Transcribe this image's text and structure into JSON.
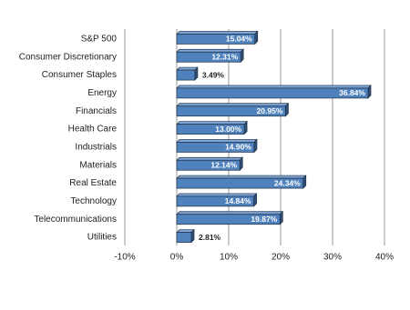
{
  "chart_data": {
    "type": "bar",
    "orientation": "horizontal",
    "categories": [
      "S&P 500",
      "Consumer Discretionary",
      "Consumer Staples",
      "Energy",
      "Financials",
      "Health Care",
      "Industrials",
      "Materials",
      "Real Estate",
      "Technology",
      "Telecommunications",
      "Utilities"
    ],
    "values": [
      15.04,
      12.31,
      3.49,
      36.84,
      20.95,
      13.0,
      14.9,
      12.14,
      24.34,
      14.84,
      19.87,
      2.81
    ],
    "value_labels": [
      "15.04%",
      "12.31%",
      "3.49%",
      "36.84%",
      "20.95%",
      "13.00%",
      "14.90%",
      "12.14%",
      "24.34%",
      "14.84%",
      "19.87%",
      "2.81%"
    ],
    "color": "#4f81bd",
    "xlim": [
      -10,
      40
    ],
    "xticks": [
      {
        "value": -10,
        "label": "-10%"
      },
      {
        "value": 0,
        "label": "0%"
      },
      {
        "value": 10,
        "label": "10%"
      },
      {
        "value": 20,
        "label": "20%"
      },
      {
        "value": 30,
        "label": "30%"
      },
      {
        "value": 40,
        "label": "40%"
      }
    ],
    "grid": true
  }
}
